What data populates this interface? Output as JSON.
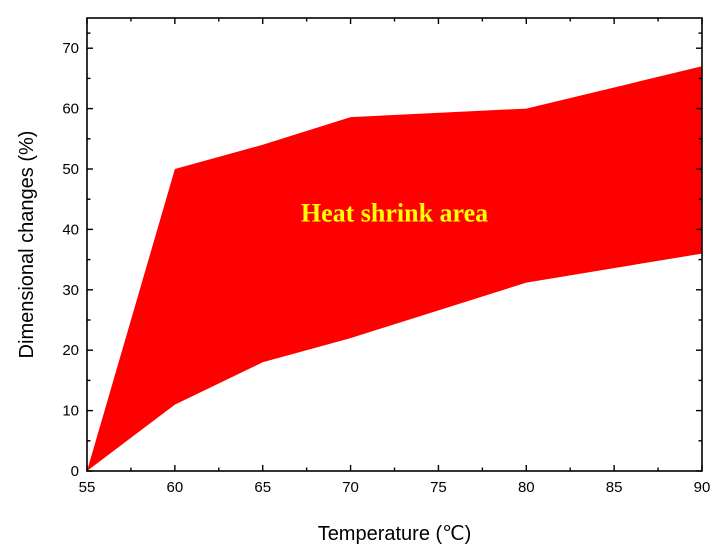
{
  "chart_data": {
    "type": "area",
    "xlabel": "Temperature (℃)",
    "ylabel": "Dimensional changes (%)",
    "xlim": [
      55,
      90
    ],
    "ylim": [
      0,
      75
    ],
    "xticks": [
      55,
      60,
      65,
      70,
      75,
      80,
      85,
      90
    ],
    "yticks": [
      0,
      10,
      20,
      30,
      40,
      50,
      60,
      70
    ],
    "grid": false,
    "upper": {
      "x": [
        55,
        60,
        65,
        70,
        80,
        90
      ],
      "y": [
        0,
        50,
        54,
        58.6,
        60,
        67
      ]
    },
    "lower": {
      "x": [
        55,
        60,
        65,
        70,
        80,
        90
      ],
      "y": [
        0,
        11,
        18,
        22,
        31.2,
        36
      ]
    },
    "fill_color": "#ff0000",
    "annotation": {
      "text": "Heat shrink area",
      "x": 72.5,
      "y": 42.8,
      "color": "#ffff00"
    }
  }
}
